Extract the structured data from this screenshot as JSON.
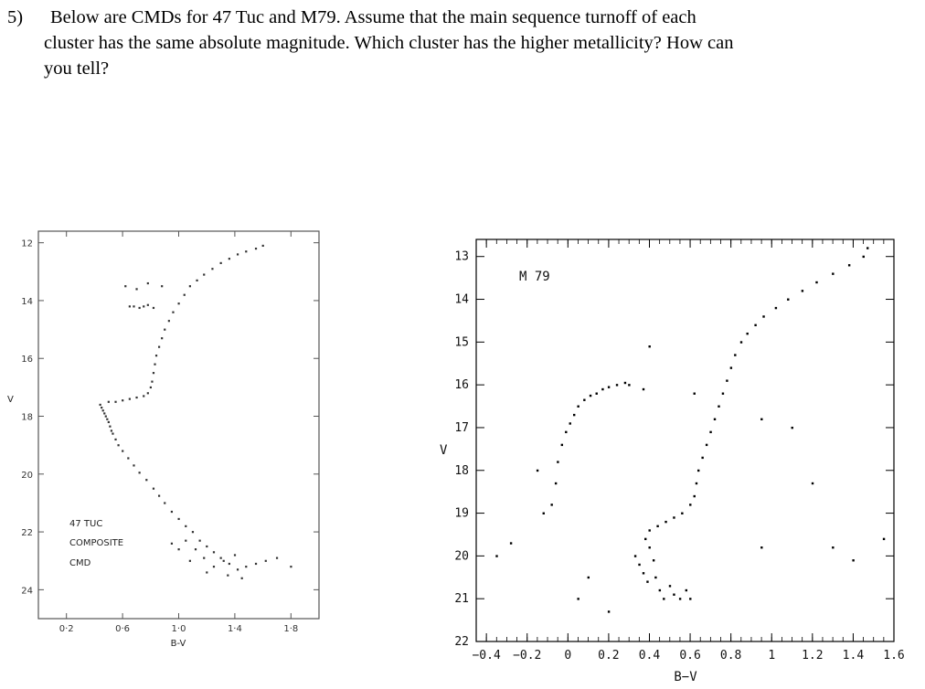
{
  "question": {
    "number": "5)",
    "lines": [
      "Below are CMDs for 47 Tuc and M79. Assume that the main sequence turnoff of each",
      "cluster has the same absolute magnitude. Which cluster has the higher metallicity? How can",
      "you tell?"
    ]
  },
  "chart_data": [
    {
      "type": "scatter",
      "annotation": [
        "47 TUC",
        "COMPOSITE",
        "CMD"
      ],
      "xlabel": "B-V",
      "ylabel": "V",
      "xlim": [
        0.0,
        2.0
      ],
      "ylim": [
        25.0,
        11.6
      ],
      "xtick_labels": [
        "0·2",
        "0·6",
        "1·0",
        "1·4",
        "1·8"
      ],
      "xticks": [
        0.2,
        0.6,
        1.0,
        1.4,
        1.8
      ],
      "ytick_labels": [
        "12",
        "14",
        "16",
        "18",
        "20",
        "22",
        "24"
      ],
      "yticks": [
        12,
        14,
        16,
        18,
        20,
        22,
        24
      ],
      "series": [
        {
          "points": [
            [
              0.44,
              17.6
            ],
            [
              0.45,
              17.7
            ],
            [
              0.46,
              17.8
            ],
            [
              0.47,
              17.9
            ],
            [
              0.48,
              18.0
            ],
            [
              0.49,
              18.1
            ],
            [
              0.5,
              18.2
            ],
            [
              0.51,
              18.35
            ],
            [
              0.52,
              18.5
            ],
            [
              0.53,
              18.6
            ],
            [
              0.55,
              18.8
            ],
            [
              0.57,
              19.0
            ],
            [
              0.6,
              19.2
            ],
            [
              0.64,
              19.45
            ],
            [
              0.68,
              19.7
            ],
            [
              0.72,
              19.95
            ],
            [
              0.77,
              20.2
            ],
            [
              0.82,
              20.5
            ],
            [
              0.86,
              20.75
            ],
            [
              0.9,
              21.0
            ],
            [
              0.95,
              21.3
            ],
            [
              1.0,
              21.55
            ],
            [
              1.05,
              21.8
            ],
            [
              1.1,
              22.0
            ],
            [
              1.15,
              22.3
            ],
            [
              1.2,
              22.5
            ],
            [
              1.25,
              22.7
            ],
            [
              1.3,
              22.9
            ],
            [
              1.36,
              23.1
            ],
            [
              1.42,
              23.3
            ],
            [
              1.05,
              22.3
            ],
            [
              1.12,
              22.6
            ],
            [
              1.18,
              22.9
            ],
            [
              1.25,
              23.2
            ],
            [
              1.32,
              23.0
            ],
            [
              1.4,
              22.8
            ],
            [
              1.48,
              23.2
            ],
            [
              1.55,
              23.1
            ],
            [
              1.62,
              23.0
            ],
            [
              1.7,
              22.9
            ],
            [
              1.8,
              23.2
            ],
            [
              0.95,
              22.4
            ],
            [
              1.0,
              22.6
            ],
            [
              1.08,
              23.0
            ],
            [
              1.2,
              23.4
            ],
            [
              1.35,
              23.5
            ],
            [
              1.45,
              23.6
            ],
            [
              0.5,
              17.5
            ],
            [
              0.55,
              17.5
            ],
            [
              0.6,
              17.45
            ],
            [
              0.65,
              17.4
            ],
            [
              0.7,
              17.35
            ],
            [
              0.75,
              17.3
            ],
            [
              0.78,
              17.2
            ],
            [
              0.8,
              17.0
            ],
            [
              0.81,
              16.8
            ],
            [
              0.82,
              16.5
            ],
            [
              0.83,
              16.2
            ],
            [
              0.84,
              15.9
            ],
            [
              0.86,
              15.6
            ],
            [
              0.88,
              15.3
            ],
            [
              0.9,
              15.0
            ],
            [
              0.93,
              14.7
            ],
            [
              0.96,
              14.4
            ],
            [
              1.0,
              14.1
            ],
            [
              1.04,
              13.8
            ],
            [
              1.08,
              13.5
            ],
            [
              1.13,
              13.3
            ],
            [
              1.18,
              13.1
            ],
            [
              1.24,
              12.9
            ],
            [
              1.3,
              12.7
            ],
            [
              1.36,
              12.55
            ],
            [
              1.42,
              12.4
            ],
            [
              1.48,
              12.3
            ],
            [
              1.55,
              12.2
            ],
            [
              1.6,
              12.1
            ],
            [
              0.65,
              14.2
            ],
            [
              0.68,
              14.2
            ],
            [
              0.72,
              14.25
            ],
            [
              0.75,
              14.2
            ],
            [
              0.78,
              14.15
            ],
            [
              0.82,
              14.25
            ],
            [
              0.62,
              13.5
            ],
            [
              0.7,
              13.6
            ],
            [
              0.78,
              13.4
            ],
            [
              0.88,
              13.5
            ]
          ]
        }
      ]
    },
    {
      "type": "scatter",
      "annotation": [
        "M 79"
      ],
      "xlabel": "B−V",
      "ylabel": "V",
      "xlim": [
        -0.45,
        1.6
      ],
      "ylim": [
        22.0,
        12.6
      ],
      "xtick_labels": [
        "−0.4",
        "−0.2",
        "0",
        "0.2",
        "0.4",
        "0.6",
        "0.8",
        "1",
        "1.2",
        "1.4",
        "1.6"
      ],
      "xticks": [
        -0.4,
        -0.2,
        0,
        0.2,
        0.4,
        0.6,
        0.8,
        1.0,
        1.2,
        1.4,
        1.6
      ],
      "ytick_labels": [
        "13",
        "14",
        "15",
        "16",
        "17",
        "18",
        "19",
        "20",
        "21",
        "22"
      ],
      "yticks": [
        13,
        14,
        15,
        16,
        17,
        18,
        19,
        20,
        21,
        22
      ],
      "series": [
        {
          "points": [
            [
              0.33,
              20.0
            ],
            [
              0.35,
              20.2
            ],
            [
              0.37,
              20.4
            ],
            [
              0.39,
              20.6
            ],
            [
              0.4,
              19.8
            ],
            [
              0.42,
              20.1
            ],
            [
              0.43,
              20.5
            ],
            [
              0.45,
              20.8
            ],
            [
              0.47,
              21.0
            ],
            [
              0.5,
              20.7
            ],
            [
              0.52,
              20.9
            ],
            [
              0.55,
              21.0
            ],
            [
              0.58,
              20.8
            ],
            [
              0.6,
              21.0
            ],
            [
              0.38,
              19.6
            ],
            [
              0.4,
              19.4
            ],
            [
              0.44,
              19.3
            ],
            [
              0.48,
              19.2
            ],
            [
              0.52,
              19.1
            ],
            [
              0.56,
              19.0
            ],
            [
              0.6,
              18.8
            ],
            [
              0.62,
              18.6
            ],
            [
              0.63,
              18.3
            ],
            [
              0.64,
              18.0
            ],
            [
              0.66,
              17.7
            ],
            [
              0.68,
              17.4
            ],
            [
              0.7,
              17.1
            ],
            [
              0.72,
              16.8
            ],
            [
              0.74,
              16.5
            ],
            [
              0.76,
              16.2
            ],
            [
              0.78,
              15.9
            ],
            [
              0.8,
              15.6
            ],
            [
              0.82,
              15.3
            ],
            [
              0.85,
              15.0
            ],
            [
              0.88,
              14.8
            ],
            [
              0.92,
              14.6
            ],
            [
              0.96,
              14.4
            ],
            [
              1.02,
              14.2
            ],
            [
              1.08,
              14.0
            ],
            [
              1.15,
              13.8
            ],
            [
              1.22,
              13.6
            ],
            [
              1.3,
              13.4
            ],
            [
              1.38,
              13.2
            ],
            [
              1.45,
              13.0
            ],
            [
              1.47,
              12.8
            ],
            [
              -0.08,
              18.8
            ],
            [
              -0.06,
              18.3
            ],
            [
              -0.05,
              17.8
            ],
            [
              -0.03,
              17.4
            ],
            [
              -0.01,
              17.1
            ],
            [
              0.01,
              16.9
            ],
            [
              0.03,
              16.7
            ],
            [
              0.05,
              16.5
            ],
            [
              0.08,
              16.35
            ],
            [
              0.11,
              16.25
            ],
            [
              0.14,
              16.2
            ],
            [
              0.17,
              16.1
            ],
            [
              0.2,
              16.05
            ],
            [
              0.24,
              16.0
            ],
            [
              0.28,
              15.95
            ],
            [
              -0.12,
              19.0
            ],
            [
              -0.15,
              18.0
            ],
            [
              -0.35,
              20.0
            ],
            [
              -0.28,
              19.7
            ],
            [
              0.05,
              21.0
            ],
            [
              0.1,
              20.5
            ],
            [
              0.2,
              21.3
            ],
            [
              1.2,
              18.3
            ],
            [
              1.3,
              19.8
            ],
            [
              1.4,
              20.1
            ],
            [
              1.55,
              19.6
            ],
            [
              0.95,
              16.8
            ],
            [
              1.1,
              17.0
            ],
            [
              0.3,
              16.0
            ],
            [
              0.37,
              16.1
            ],
            [
              0.4,
              15.1
            ],
            [
              0.62,
              16.2
            ],
            [
              0.95,
              19.8
            ]
          ]
        }
      ]
    }
  ]
}
